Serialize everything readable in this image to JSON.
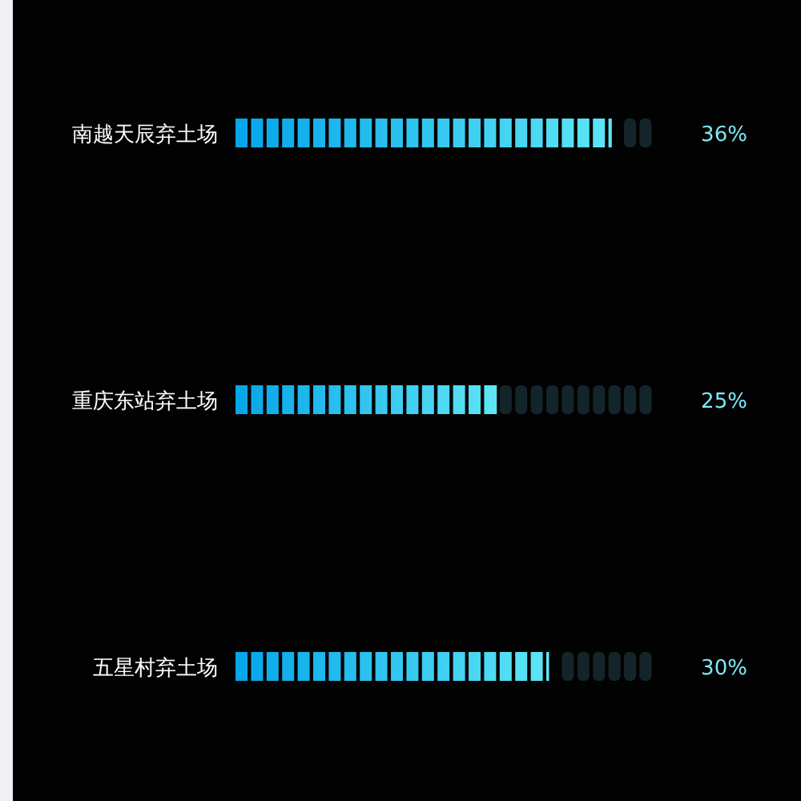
{
  "chart_data": {
    "type": "bar",
    "orientation": "horizontal",
    "categories": [
      "南越天辰弃土场",
      "重庆东站弃土场",
      "五星村弃土场"
    ],
    "values": [
      36,
      25,
      30
    ],
    "value_labels": [
      "36%",
      "25%",
      "30%"
    ],
    "colors": [
      "#5ee6f5",
      "#5ee6f5",
      "#5ee6f5"
    ],
    "xlim": [
      0,
      40
    ],
    "grid": false,
    "legend": false
  }
}
